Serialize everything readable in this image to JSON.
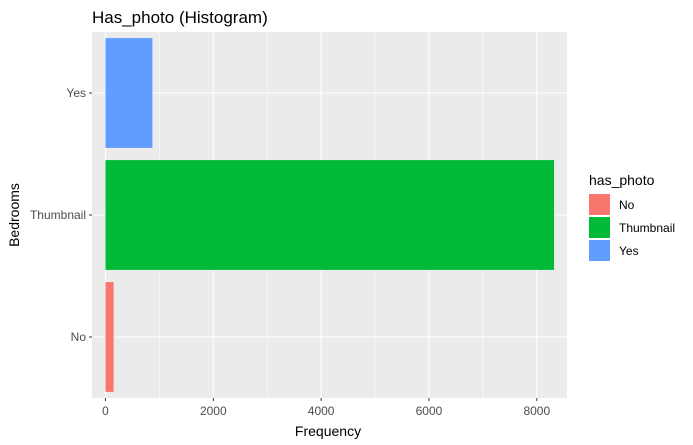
{
  "chart_data": {
    "type": "bar",
    "orientation": "horizontal",
    "title": "Has_photo (Histogram)",
    "xlabel": "Frequency",
    "ylabel": "Bedrooms",
    "categories": [
      "No",
      "Thumbnail",
      "Yes"
    ],
    "values": [
      150,
      8320,
      870
    ],
    "xlim": [
      -250,
      8560
    ],
    "xticks": [
      0,
      2000,
      4000,
      6000,
      8000
    ],
    "grid": true,
    "legend": {
      "title": "has_photo",
      "placement": "right",
      "entries": [
        "No",
        "Thumbnail",
        "Yes"
      ]
    },
    "colors": [
      "#F8766D",
      "#00BA38",
      "#619CFF"
    ]
  }
}
